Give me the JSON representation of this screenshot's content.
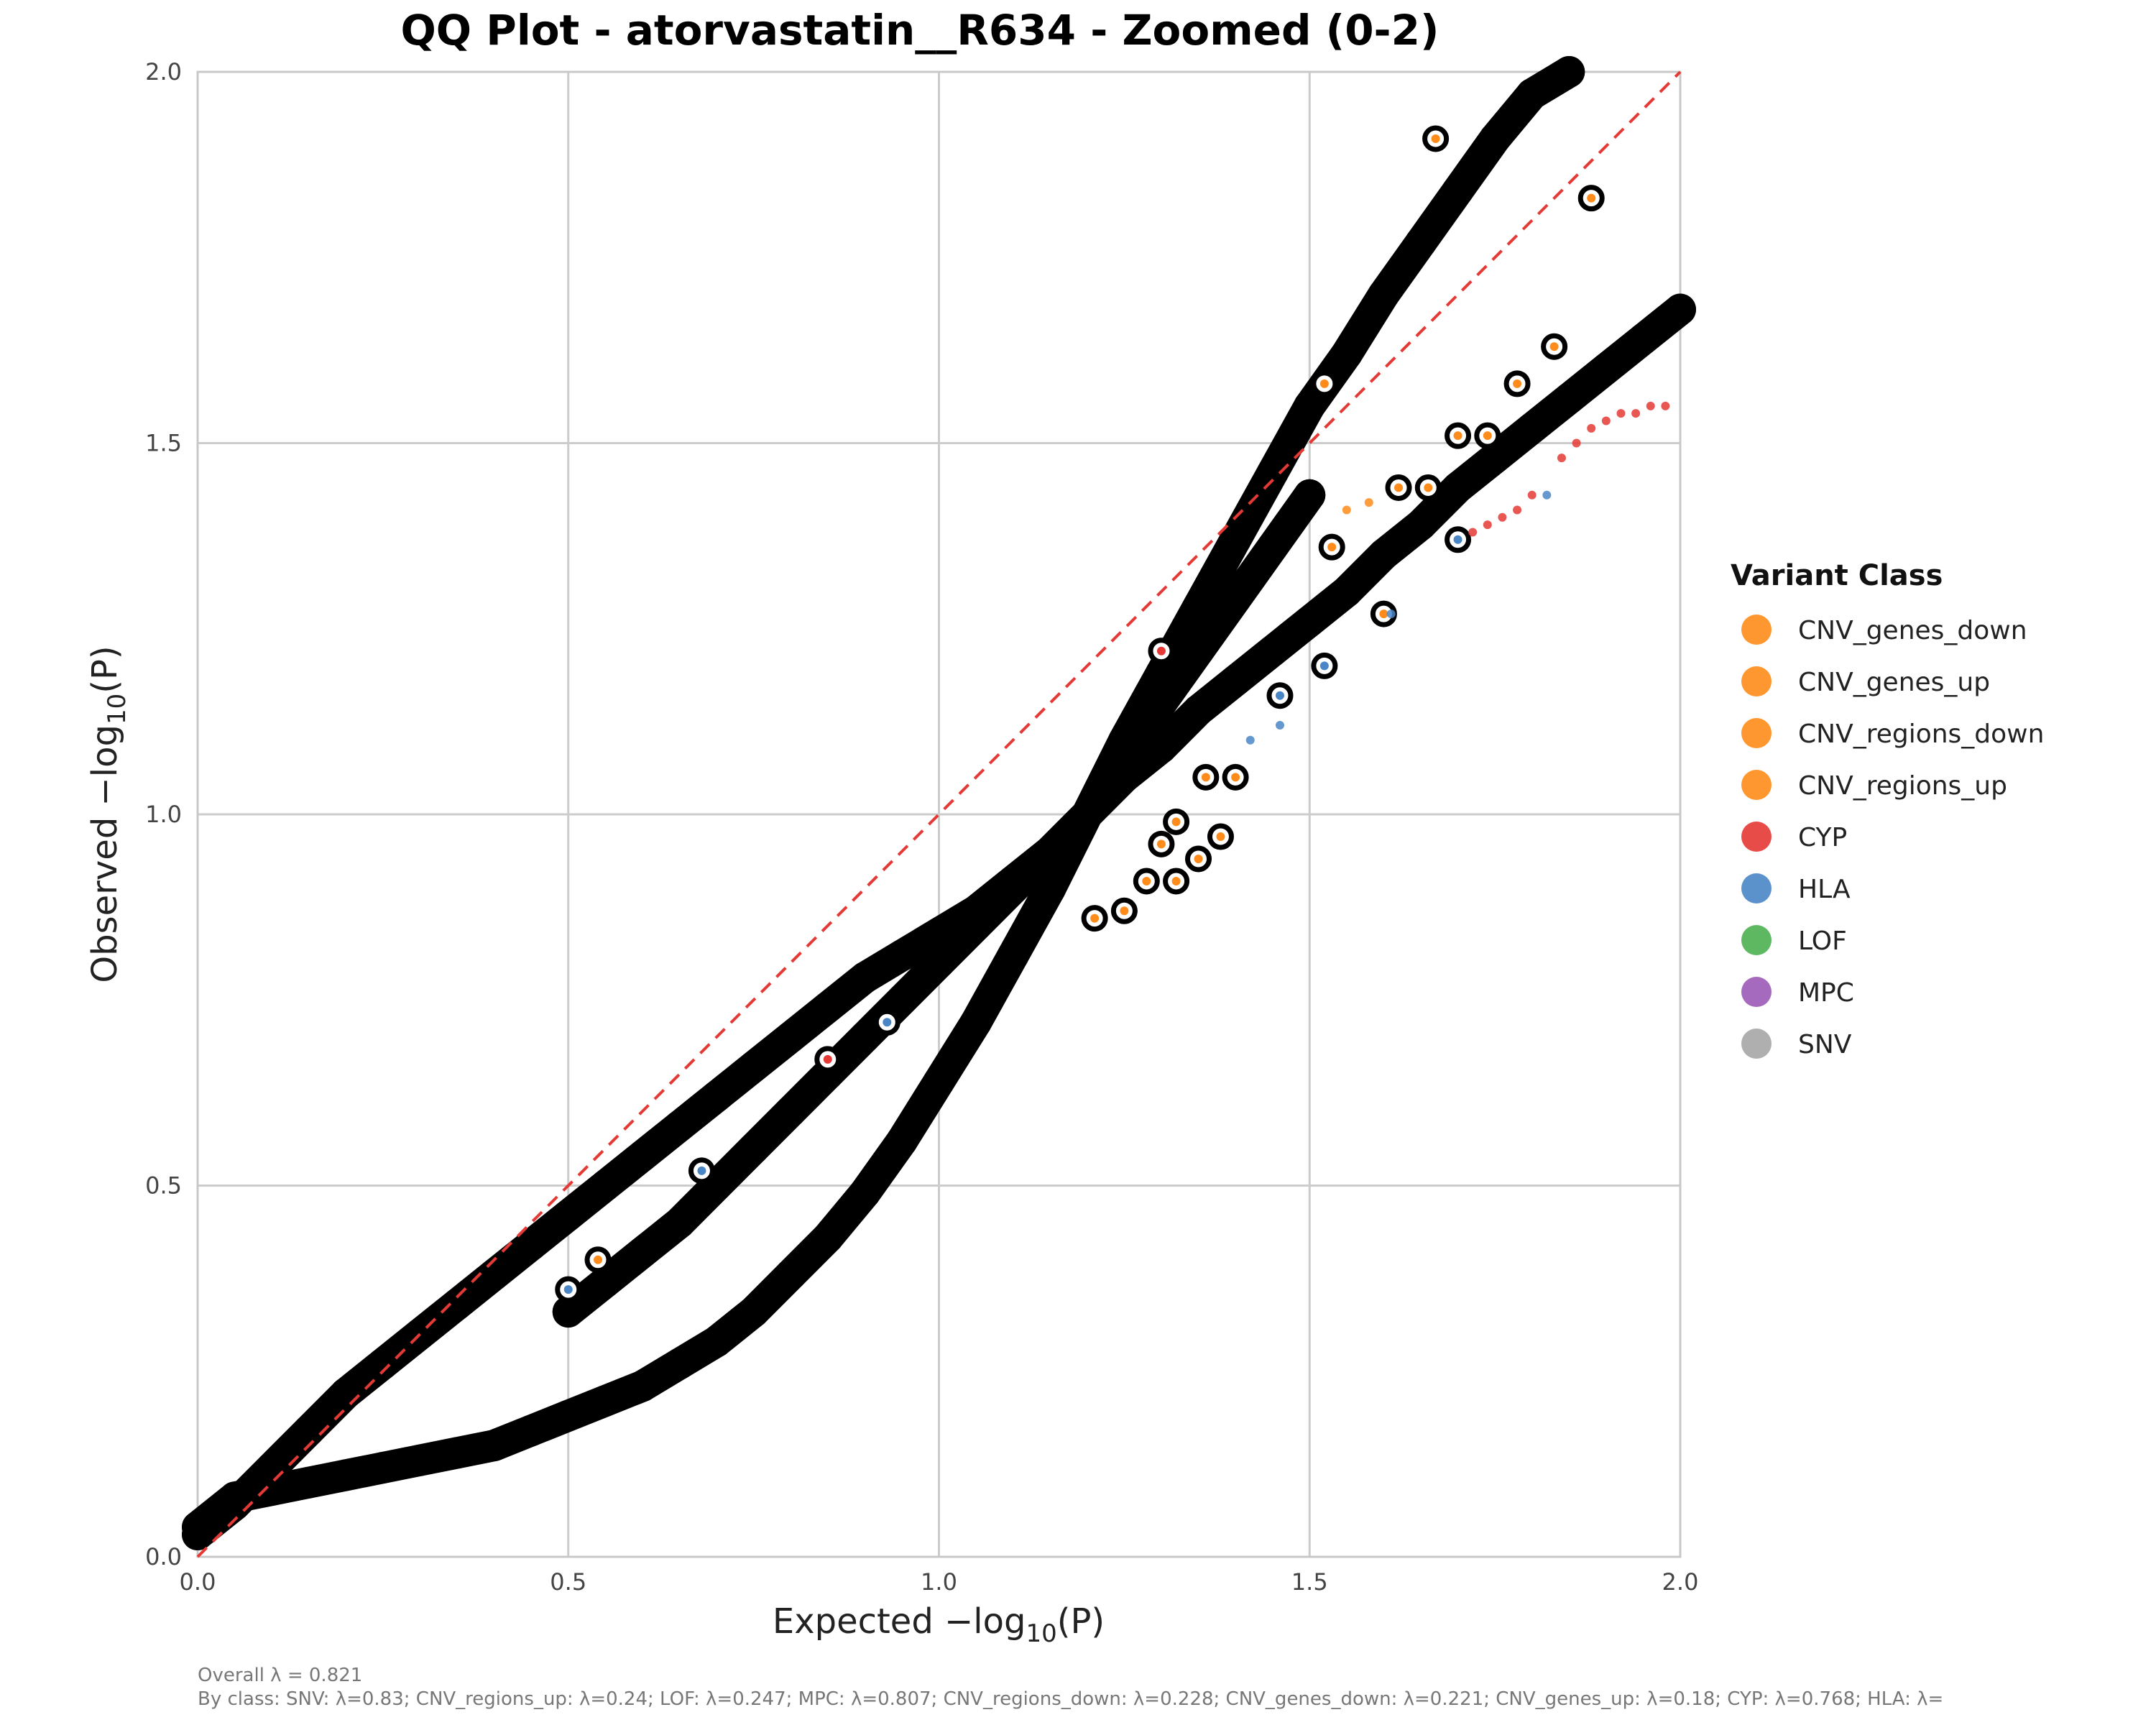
{
  "chart_data": {
    "type": "scatter",
    "title": "QQ Plot - atorvastatin__R634 - Zoomed (0-2)",
    "xlabel_main": "Expected −log",
    "xlabel_sub": "10",
    "xlabel_tail": "(P)",
    "ylabel_main": "Observed −log",
    "ylabel_sub": "10",
    "ylabel_tail": "(P)",
    "xlim": [
      0,
      2
    ],
    "ylim": [
      0,
      2
    ],
    "x_ticks": [
      "0.0",
      "0.5",
      "1.0",
      "1.5",
      "2.0"
    ],
    "y_ticks": [
      "0.0",
      "0.5",
      "1.0",
      "1.5",
      "2.0"
    ],
    "grid": true,
    "reference_line": {
      "x": [
        0,
        2
      ],
      "y": [
        0,
        2
      ],
      "color": "#e53935",
      "style": "dashed"
    },
    "legend_title": "Variant Class",
    "legend_position": "right",
    "legend": [
      {
        "name": "CNV_genes_down",
        "color": "#ff8c1a"
      },
      {
        "name": "CNV_genes_up",
        "color": "#ff8c1a"
      },
      {
        "name": "CNV_regions_down",
        "color": "#ff8c1a"
      },
      {
        "name": "CNV_regions_up",
        "color": "#ff8c1a"
      },
      {
        "name": "CYP",
        "color": "#e53935"
      },
      {
        "name": "HLA",
        "color": "#4a86c5"
      },
      {
        "name": "LOF",
        "color": "#4caf50"
      },
      {
        "name": "MPC",
        "color": "#9b59b6"
      },
      {
        "name": "SNV",
        "color": "#a6a6a6"
      }
    ],
    "series": [
      {
        "name": "curve_a",
        "color": "#000000",
        "x": [
          0.0,
          0.05,
          0.1,
          0.15,
          0.2,
          0.25,
          0.3,
          0.35,
          0.4,
          0.45,
          0.5,
          0.55,
          0.6,
          0.65,
          0.7,
          0.75,
          0.8,
          0.85,
          0.9,
          0.95,
          1.0,
          1.05,
          1.1,
          1.15,
          1.2,
          1.25,
          1.3,
          1.35,
          1.4,
          1.45,
          1.5,
          1.55,
          1.6,
          1.65,
          1.7,
          1.75,
          1.8,
          1.85,
          1.9,
          1.95,
          2.0
        ],
        "y": [
          0.03,
          0.07,
          0.12,
          0.17,
          0.22,
          0.26,
          0.3,
          0.34,
          0.38,
          0.42,
          0.46,
          0.5,
          0.54,
          0.58,
          0.62,
          0.66,
          0.7,
          0.74,
          0.78,
          0.81,
          0.84,
          0.87,
          0.91,
          0.95,
          1.0,
          1.05,
          1.09,
          1.14,
          1.18,
          1.22,
          1.26,
          1.3,
          1.35,
          1.39,
          1.44,
          1.48,
          1.52,
          1.56,
          1.6,
          1.64,
          1.68
        ]
      },
      {
        "name": "curve_b",
        "color": "#000000",
        "x": [
          0.0,
          0.05,
          0.1,
          0.15,
          0.2,
          0.25,
          0.3,
          0.35,
          0.4,
          0.45,
          0.5,
          0.55,
          0.6,
          0.65,
          0.7,
          0.75,
          0.8,
          0.85,
          0.9,
          0.95,
          1.0,
          1.05,
          1.1,
          1.15,
          1.2,
          1.25,
          1.3,
          1.35,
          1.4,
          1.45,
          1.5,
          1.55,
          1.6,
          1.65,
          1.7,
          1.75,
          1.8,
          1.85
        ],
        "y": [
          0.04,
          0.08,
          0.09,
          0.1,
          0.11,
          0.12,
          0.13,
          0.14,
          0.15,
          0.17,
          0.19,
          0.21,
          0.23,
          0.26,
          0.29,
          0.33,
          0.38,
          0.43,
          0.49,
          0.56,
          0.64,
          0.72,
          0.81,
          0.9,
          1.0,
          1.1,
          1.19,
          1.28,
          1.37,
          1.46,
          1.55,
          1.62,
          1.7,
          1.77,
          1.84,
          1.91,
          1.97,
          2.0
        ]
      },
      {
        "name": "curve_c",
        "color": "#000000",
        "x": [
          0.5,
          0.55,
          0.6,
          0.65,
          0.7,
          0.75,
          0.8,
          0.85,
          0.9,
          0.95,
          1.0,
          1.05,
          1.1,
          1.15,
          1.2,
          1.25,
          1.3,
          1.35,
          1.4,
          1.45,
          1.5
        ],
        "y": [
          0.33,
          0.37,
          0.41,
          0.45,
          0.5,
          0.55,
          0.6,
          0.65,
          0.7,
          0.75,
          0.8,
          0.85,
          0.9,
          0.95,
          1.0,
          1.08,
          1.15,
          1.22,
          1.29,
          1.36,
          1.43
        ]
      }
    ],
    "outliers": [
      {
        "x": 1.67,
        "y": 1.91,
        "color": "#ff8c1a"
      },
      {
        "x": 1.88,
        "y": 1.83,
        "color": "#ff8c1a"
      },
      {
        "x": 1.83,
        "y": 1.63,
        "color": "#ff8c1a"
      },
      {
        "x": 1.78,
        "y": 1.58,
        "color": "#ff8c1a"
      },
      {
        "x": 1.52,
        "y": 1.58,
        "color": "#ff8c1a"
      },
      {
        "x": 1.74,
        "y": 1.51,
        "color": "#ff8c1a"
      },
      {
        "x": 1.7,
        "y": 1.51,
        "color": "#ff8c1a"
      },
      {
        "x": 1.62,
        "y": 1.44,
        "color": "#ff8c1a"
      },
      {
        "x": 1.66,
        "y": 1.44,
        "color": "#ff8c1a"
      },
      {
        "x": 1.53,
        "y": 1.36,
        "color": "#ff8c1a"
      },
      {
        "x": 1.7,
        "y": 1.37,
        "color": "#4a86c5"
      },
      {
        "x": 1.6,
        "y": 1.27,
        "color": "#ff8c1a"
      },
      {
        "x": 1.52,
        "y": 1.2,
        "color": "#4a86c5"
      },
      {
        "x": 1.46,
        "y": 1.16,
        "color": "#4a86c5"
      },
      {
        "x": 1.4,
        "y": 1.05,
        "color": "#ff8c1a"
      },
      {
        "x": 1.36,
        "y": 1.05,
        "color": "#ff8c1a"
      },
      {
        "x": 1.32,
        "y": 0.99,
        "color": "#ff8c1a"
      },
      {
        "x": 1.38,
        "y": 0.97,
        "color": "#ff8c1a"
      },
      {
        "x": 1.3,
        "y": 0.96,
        "color": "#ff8c1a"
      },
      {
        "x": 1.35,
        "y": 0.94,
        "color": "#ff8c1a"
      },
      {
        "x": 1.32,
        "y": 0.91,
        "color": "#ff8c1a"
      },
      {
        "x": 1.28,
        "y": 0.91,
        "color": "#ff8c1a"
      },
      {
        "x": 1.25,
        "y": 0.87,
        "color": "#ff8c1a"
      },
      {
        "x": 1.21,
        "y": 0.86,
        "color": "#ff8c1a"
      },
      {
        "x": 0.68,
        "y": 0.52,
        "color": "#4a86c5"
      },
      {
        "x": 0.5,
        "y": 0.36,
        "color": "#4a86c5"
      },
      {
        "x": 0.54,
        "y": 0.4,
        "color": "#ff8c1a"
      },
      {
        "x": 0.93,
        "y": 0.72,
        "color": "#4a86c5"
      },
      {
        "x": 0.85,
        "y": 0.67,
        "color": "#e53935"
      },
      {
        "x": 1.3,
        "y": 1.22,
        "color": "#e53935"
      }
    ],
    "small_dots": [
      {
        "x": 1.55,
        "y": 1.41,
        "color": "#ff8c1a"
      },
      {
        "x": 1.58,
        "y": 1.42,
        "color": "#ff8c1a"
      },
      {
        "x": 1.72,
        "y": 1.38,
        "color": "#e53935"
      },
      {
        "x": 1.74,
        "y": 1.39,
        "color": "#e53935"
      },
      {
        "x": 1.76,
        "y": 1.4,
        "color": "#e53935"
      },
      {
        "x": 1.78,
        "y": 1.41,
        "color": "#e53935"
      },
      {
        "x": 1.8,
        "y": 1.43,
        "color": "#e53935"
      },
      {
        "x": 1.82,
        "y": 1.43,
        "color": "#4a86c5"
      },
      {
        "x": 1.84,
        "y": 1.48,
        "color": "#e53935"
      },
      {
        "x": 1.86,
        "y": 1.5,
        "color": "#e53935"
      },
      {
        "x": 1.88,
        "y": 1.52,
        "color": "#e53935"
      },
      {
        "x": 1.9,
        "y": 1.53,
        "color": "#e53935"
      },
      {
        "x": 1.92,
        "y": 1.54,
        "color": "#e53935"
      },
      {
        "x": 1.94,
        "y": 1.54,
        "color": "#e53935"
      },
      {
        "x": 1.96,
        "y": 1.55,
        "color": "#e53935"
      },
      {
        "x": 1.98,
        "y": 1.55,
        "color": "#e53935"
      },
      {
        "x": 1.61,
        "y": 1.27,
        "color": "#4a86c5"
      },
      {
        "x": 1.46,
        "y": 1.12,
        "color": "#4a86c5"
      },
      {
        "x": 1.42,
        "y": 1.1,
        "color": "#4a86c5"
      }
    ],
    "caption_line1": "Overall λ = 0.821",
    "caption_line2": "By class: SNV: λ=0.83; CNV_regions_up: λ=0.24; LOF: λ=0.247; MPC: λ=0.807; CNV_regions_down: λ=0.228; CNV_genes_down: λ=0.221; CNV_genes_up: λ=0.18; CYP: λ=0.768; HLA: λ="
  }
}
